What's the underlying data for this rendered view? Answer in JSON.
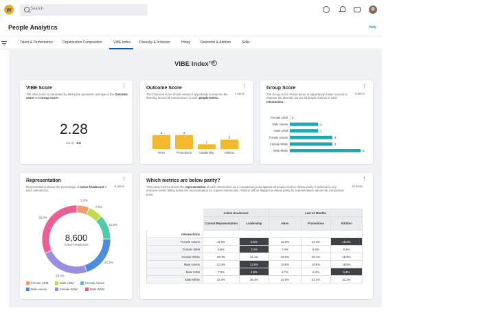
{
  "header": {
    "search_placeholder": "Search",
    "icons": [
      "chat-icon",
      "bell-icon",
      "inbox-icon",
      "avatar"
    ]
  },
  "page": {
    "title": "People Analytics",
    "help": "Help"
  },
  "tabs": [
    "Talent & Performance",
    "Organization Composition",
    "VIBE Index",
    "Diversity & Inclusion",
    "Hiring",
    "Retention & Attrition",
    "Skills"
  ],
  "active_tab": "VIBE Index",
  "dashboard_title": "VIBE Index™",
  "vibe": {
    "title": "VIBE Score",
    "desc_pre": "The Vibe score is calculated by taking the geometric average of the ",
    "desc_b1": "Outcome score",
    "desc_mid": " and ",
    "desc_b2": "Group score",
    "desc_end": ".",
    "score": "2.28",
    "out_of_label": "out of",
    "out_of_value": "5.0"
  },
  "outcome": {
    "title": "Outcome Score",
    "count": "4 items",
    "desc_pre": "The Outcome score shows areas of opportunity to improve the diversity across all intersections in each ",
    "desc_b": "people metric",
    "desc_end": "."
  },
  "group": {
    "title": "Group Score",
    "count": "6 items",
    "desc_pre": "The Group score shows areas of opportunity (lower scores) to improve the diversity across all people metrics in each ",
    "desc_b": "intersection",
    "desc_end": "."
  },
  "representation": {
    "title": "Representation",
    "count": "6 items",
    "desc_pre": "Representation shows the percentage of ",
    "desc_b": "active headcount",
    "desc_end": " in each intersection.",
    "center_value": "8,600",
    "center_label": "Active Headcount",
    "legend": [
      "Female URM",
      "Male URM",
      "Female Asians",
      "Male Asians",
      "Female White",
      "Male White"
    ]
  },
  "parity": {
    "title": "Which metrics are below parity?",
    "count": "36 items",
    "desc_pre": "This parity metrics shows the ",
    "desc_b": "representation",
    "desc_end": " of each intersection as a comparison point against all people metrics. Below parity is defined by any outcome metric falling below the representation for a given intersection. Attrition will be flagged as below parity for representation above the comparison point.",
    "group_headers": [
      "Active Headcount",
      "Last 12 Months"
    ],
    "col_headers": [
      "Current Representation",
      "Leadership",
      "Hires",
      "Promotions",
      "Attrition"
    ],
    "intersections_label": "Intersections",
    "rows": [
      {
        "label": "Female Asians",
        "cells": [
          "11.6%",
          "5.5%",
          "13.2%",
          "12.4%",
          "15.6%"
        ],
        "flags": [
          false,
          true,
          false,
          false,
          true
        ]
      },
      {
        "label": "Female URM",
        "cells": [
          "5.8%",
          "3.4%",
          "7.4%",
          "9.2%",
          "6.3%"
        ],
        "flags": [
          false,
          true,
          false,
          false,
          false
        ]
      },
      {
        "label": "Female White",
        "cells": [
          "23.3%",
          "24.1%",
          "19.8%",
          "25.1%",
          "18.8%"
        ],
        "flags": [
          false,
          false,
          false,
          false,
          false
        ]
      },
      {
        "label": "Male Asians",
        "cells": [
          "20.3%",
          "13.8%",
          "19.8%",
          "18.5%",
          "18.8%"
        ],
        "flags": [
          false,
          true,
          false,
          false,
          false
        ]
      },
      {
        "label": "Male URM",
        "cells": [
          "7.0%",
          "4.8%",
          "6.7%",
          "6.3%",
          "9.4%"
        ],
        "flags": [
          false,
          true,
          false,
          false,
          true
        ]
      },
      {
        "label": "Male White",
        "cells": [
          "32.0%",
          "48.3%",
          "33.0%",
          "31.4%",
          "31.3%"
        ],
        "flags": [
          false,
          false,
          false,
          false,
          false
        ]
      }
    ]
  },
  "colors": {
    "accent": "#0b5cad",
    "bar_yellow": "#f5b82e",
    "bar_teal": "#1fa8b0",
    "dark_cell": "#3e4247"
  },
  "chart_data": [
    {
      "type": "bar",
      "title": "Outcome Score",
      "categories": [
        "Hires",
        "Promotions",
        "Leadership",
        "Attrition"
      ],
      "values": [
        3,
        3,
        1,
        2
      ],
      "ylim": [
        0,
        5
      ]
    },
    {
      "type": "bar",
      "orientation": "horizontal",
      "title": "Group Score",
      "categories": [
        "Female URM",
        "Male Asians",
        "Male URM",
        "Female Asians",
        "Female White",
        "Male White"
      ],
      "values": [
        0,
        2,
        2,
        3,
        3,
        5
      ],
      "xlim": [
        0,
        5
      ]
    },
    {
      "type": "pie",
      "title": "Representation",
      "categories": [
        "Female URM",
        "Male URM",
        "Female Asians",
        "Male Asians",
        "Female White",
        "Male White"
      ],
      "values": [
        5.8,
        7.0,
        11.6,
        20.3,
        23.3,
        32.0
      ],
      "colors": [
        "#f29a6b",
        "#c2d94a",
        "#4dcba5",
        "#4a8de0",
        "#9b8ee0",
        "#ec5f94"
      ],
      "donut": true
    }
  ]
}
